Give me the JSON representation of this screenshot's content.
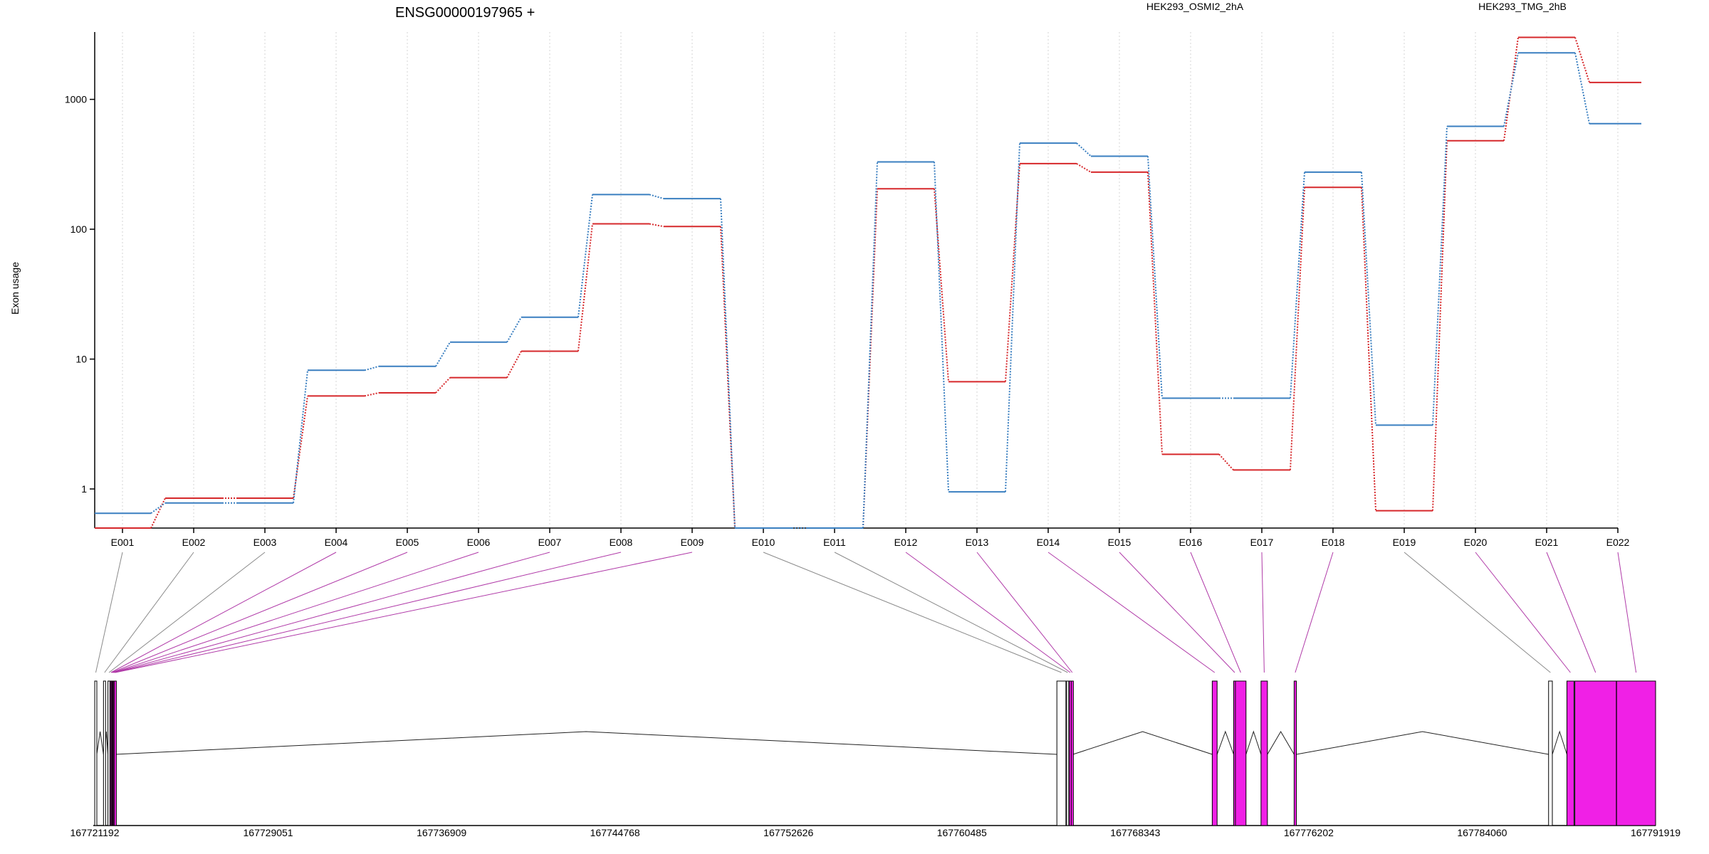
{
  "chart_data": {
    "type": "line",
    "title": "ENSG00000197965 +",
    "ylabel": "Exon usage",
    "yscale": "log",
    "ylim": [
      0.5,
      3300
    ],
    "yticks": [
      "1",
      "10",
      "100",
      "1000"
    ],
    "ytick_values": [
      1,
      10,
      100,
      1000
    ],
    "grid": "vertical dotted at exon centers",
    "legend_position": "top",
    "categories": [
      "E001",
      "E002",
      "E003",
      "E004",
      "E005",
      "E006",
      "E007",
      "E008",
      "E009",
      "E010",
      "E011",
      "E012",
      "E013",
      "E014",
      "E015",
      "E016",
      "E017",
      "E018",
      "E019",
      "E020",
      "E021",
      "E022"
    ],
    "series": [
      {
        "name": "HEK293_OSMI2_2hA",
        "color": "#d6282b",
        "values": [
          0.5,
          0.85,
          0.85,
          5.2,
          5.5,
          7.2,
          11.5,
          110,
          105,
          0.5,
          0.5,
          205,
          6.7,
          320,
          275,
          1.85,
          1.4,
          210,
          0.68,
          480,
          3000,
          1350
        ]
      },
      {
        "name": "HEK293_TMG_2hB",
        "color": "#3a7fc0",
        "values": [
          0.65,
          0.78,
          0.78,
          8.2,
          8.8,
          13.5,
          21,
          185,
          172,
          0.5,
          0.5,
          330,
          0.95,
          460,
          365,
          5.0,
          5.0,
          275,
          3.1,
          620,
          2280,
          650
        ]
      }
    ],
    "gene_model": {
      "coordinate_labels": [
        "167721192",
        "167729051",
        "167736909",
        "167744768",
        "167752626",
        "167760485",
        "167768343",
        "167776202",
        "167784060",
        "167791919"
      ],
      "coord_start": 167721192,
      "coord_end": 167791919,
      "exon_fill_colors": {
        "significant": "#f020e6",
        "neutral": "#ffffff"
      },
      "exons": [
        {
          "id": "E001",
          "start": 167721192,
          "end": 167721285,
          "significant": false
        },
        {
          "id": "E002",
          "start": 167721590,
          "end": 167721650,
          "significant": false
        },
        {
          "id": "E003",
          "start": 167721790,
          "end": 167721850,
          "significant": false
        },
        {
          "id": "E004",
          "start": 167721880,
          "end": 167721915,
          "significant": true
        },
        {
          "id": "E005",
          "start": 167721925,
          "end": 167721960,
          "significant": true
        },
        {
          "id": "E006",
          "start": 167721965,
          "end": 167721995,
          "significant": true
        },
        {
          "id": "E007",
          "start": 167722000,
          "end": 167722030,
          "significant": true
        },
        {
          "id": "E008",
          "start": 167722035,
          "end": 167722070,
          "significant": true
        },
        {
          "id": "E009",
          "start": 167722075,
          "end": 167722115,
          "significant": true
        },
        {
          "id": "E010",
          "start": 167764790,
          "end": 167765200,
          "significant": false
        },
        {
          "id": "E011",
          "start": 167765230,
          "end": 167765330,
          "significant": false
        },
        {
          "id": "E012",
          "start": 167765350,
          "end": 167765430,
          "significant": true
        },
        {
          "id": "E013",
          "start": 167765440,
          "end": 167765520,
          "significant": true
        },
        {
          "id": "E014",
          "start": 167771830,
          "end": 167772050,
          "significant": true
        },
        {
          "id": "E015",
          "start": 167772800,
          "end": 167772870,
          "significant": true
        },
        {
          "id": "E016",
          "start": 167772880,
          "end": 167773360,
          "significant": true
        },
        {
          "id": "E017",
          "start": 167774040,
          "end": 167774330,
          "significant": true
        },
        {
          "id": "E018",
          "start": 167775540,
          "end": 167775640,
          "significant": true
        },
        {
          "id": "E019",
          "start": 167787070,
          "end": 167787240,
          "significant": false
        },
        {
          "id": "E020",
          "start": 167787900,
          "end": 167788220,
          "significant": true
        },
        {
          "id": "E021",
          "start": 167788260,
          "end": 167790140,
          "significant": true
        },
        {
          "id": "E022",
          "start": 167790150,
          "end": 167791919,
          "significant": true
        }
      ]
    }
  }
}
